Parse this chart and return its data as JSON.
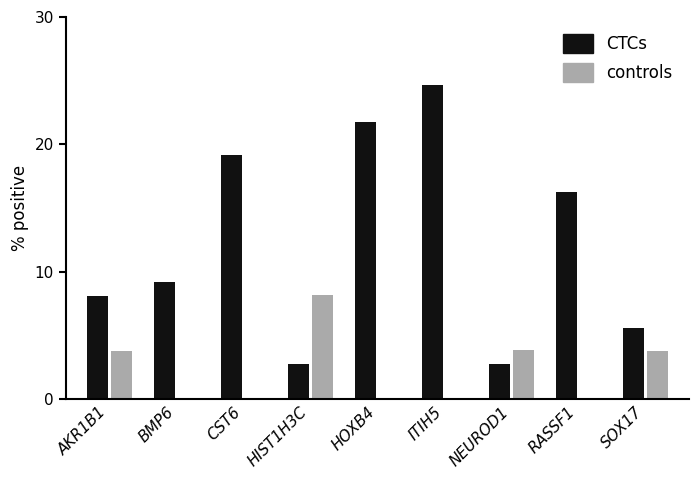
{
  "categories": [
    "AKR1B1",
    "BMP6",
    "CST6",
    "HIST1H3C",
    "HOXB4",
    "ITIH5",
    "NEUROD1",
    "RASSF1",
    "SOX17"
  ],
  "ctc_values": [
    8.1,
    9.2,
    19.2,
    2.8,
    21.8,
    24.7,
    2.8,
    16.3,
    5.6
  ],
  "control_values": [
    3.8,
    0,
    0,
    8.2,
    0,
    0,
    3.9,
    0,
    3.8
  ],
  "ctc_color": "#111111",
  "control_color": "#aaaaaa",
  "ylabel": "% positive",
  "ylim": [
    0,
    30
  ],
  "yticks": [
    0,
    10,
    20,
    30
  ],
  "legend_labels": [
    "CTCs",
    "controls"
  ],
  "bar_width": 0.32,
  "figure_width": 7.0,
  "figure_height": 4.8,
  "dpi": 100
}
